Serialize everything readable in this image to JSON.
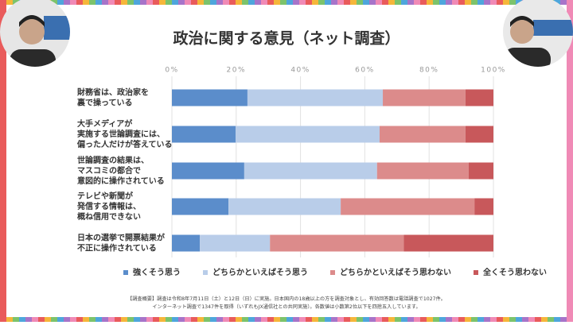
{
  "chart_data": {
    "type": "stacked-barh",
    "title": "政治に関する意見（ネット調査）",
    "categories": [
      [
        "財務省は、政治家を",
        "裏で操っている"
      ],
      [
        "大手メディアが",
        "実施する世論調査には、",
        "偏った人だけが答えている"
      ],
      [
        "世論調査の結果は、",
        "マスコミの都合で",
        "意図的に操作されている"
      ],
      [
        "テレビや新聞が",
        "発信する情報は、",
        "概ね信用できない"
      ],
      [
        "日本の選挙で開票結果が",
        "不正に操作されている"
      ]
    ],
    "series": [
      {
        "name": "強くそう思う",
        "color": "#5b8dcb",
        "values": [
          23.5,
          19.8,
          22.5,
          17.6,
          8.7
        ]
      },
      {
        "name": "どちらかといえばそう思う",
        "color": "#b9cde9",
        "values": [
          42.1,
          44.8,
          41.3,
          34.9,
          21.8
        ]
      },
      {
        "name": "どちらかといえばそう思わない",
        "color": "#dc8b8b",
        "values": [
          25.7,
          26.7,
          28.5,
          41.6,
          41.6
        ]
      },
      {
        "name": "全くそう思わない",
        "color": "#c8585b",
        "values": [
          8.7,
          8.7,
          7.7,
          5.9,
          27.9
        ]
      }
    ],
    "xlim": [
      0,
      100
    ],
    "xticks": [
      {
        "value": 0,
        "label": "0%"
      },
      {
        "value": 20,
        "label": "20%"
      },
      {
        "value": 40,
        "label": "40%"
      },
      {
        "value": 60,
        "label": "60%"
      },
      {
        "value": 80,
        "label": "80%"
      },
      {
        "value": 100,
        "label": "100%"
      }
    ],
    "grid": true,
    "legend": "bottom",
    "note": [
      "【調査概要】調査は令和8年7月11日（土）と12日（日）に実施。日本国内の18歳以上の方を調査対象とし、有効回答数は電話調査で1027件。",
      "インターネット調査で1347件を取得（いずれもJX通信社との共同実施）。各数値は小数第2位以下を四捨五入しています。"
    ]
  }
}
